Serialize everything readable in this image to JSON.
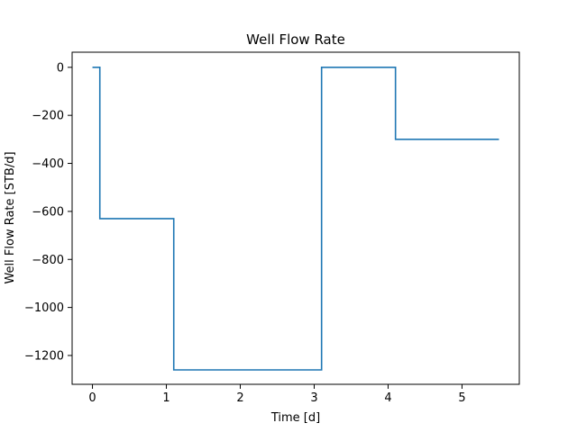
{
  "chart_data": {
    "type": "line",
    "title": "Well Flow Rate",
    "xlabel": "Time [d]",
    "ylabel": "Well Flow Rate [STB/d]",
    "xlim": [
      -0.275,
      5.775
    ],
    "ylim": [
      -1320,
      63
    ],
    "xticks": [
      0,
      1,
      2,
      3,
      4,
      5
    ],
    "xtick_labels": [
      "0",
      "1",
      "2",
      "3",
      "4",
      "5"
    ],
    "yticks": [
      0,
      -200,
      -400,
      -600,
      -800,
      -1000,
      -1200
    ],
    "ytick_labels": [
      "0",
      "−200",
      "−400",
      "−600",
      "−800",
      "−1000",
      "−1200"
    ],
    "grid": false,
    "series": [
      {
        "color": "#1f77b4",
        "x": [
          0.0,
          0.1,
          0.1,
          1.1,
          1.1,
          3.1,
          3.1,
          4.1,
          4.1,
          5.5
        ],
        "y": [
          0,
          0,
          -630,
          -630,
          -1260,
          -1260,
          0,
          0,
          -300,
          -300
        ]
      }
    ]
  }
}
